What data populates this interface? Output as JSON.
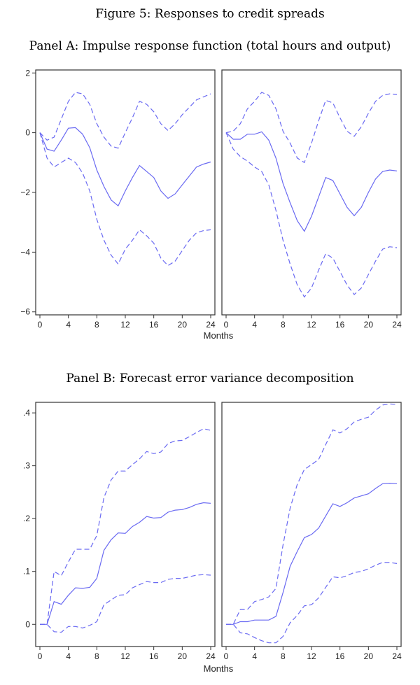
{
  "figure_title": "Figure 5: Responses to credit spreads",
  "colors": {
    "line": "#6a6af2",
    "frame": "#333333"
  },
  "chart_data": [
    {
      "panel": "Panel A: Impulse response function (total hours and output)",
      "type": "line",
      "xlabel": "Months",
      "xlim": [
        0,
        24
      ],
      "ylim": [
        -6.1,
        2.1
      ],
      "xticks": [
        0,
        4,
        8,
        12,
        16,
        20,
        24
      ],
      "yticks": [
        2,
        0,
        -2,
        -4,
        -6
      ],
      "ytick_labels": [
        "2",
        "0",
        "−2",
        "−4",
        "−6"
      ],
      "grid": false,
      "x": [
        0,
        1,
        2,
        3,
        4,
        5,
        6,
        7,
        8,
        9,
        10,
        11,
        12,
        13,
        14,
        15,
        16,
        17,
        18,
        19,
        20,
        21,
        22,
        23,
        24
      ],
      "subplots": [
        {
          "series": [
            {
              "style": "solid",
              "values": [
                0,
                -0.55,
                -0.62,
                -0.25,
                0.15,
                0.17,
                -0.05,
                -0.5,
                -1.25,
                -1.8,
                -2.25,
                -2.45,
                -1.95,
                -1.5,
                -1.1,
                -1.3,
                -1.5,
                -1.95,
                -2.2,
                -2.05,
                -1.75,
                -1.45,
                -1.15,
                -1.05,
                -0.98
              ]
            },
            {
              "style": "dashed",
              "values": [
                0,
                -0.25,
                -0.15,
                0.45,
                1.05,
                1.35,
                1.3,
                0.95,
                0.3,
                -0.15,
                -0.45,
                -0.52,
                0.0,
                0.5,
                1.05,
                0.95,
                0.7,
                0.3,
                0.07,
                0.3,
                0.6,
                0.85,
                1.1,
                1.2,
                1.3
              ]
            },
            {
              "style": "dashed",
              "values": [
                0,
                -0.85,
                -1.15,
                -1.0,
                -0.85,
                -1.0,
                -1.35,
                -1.95,
                -2.9,
                -3.6,
                -4.1,
                -4.4,
                -3.9,
                -3.6,
                -3.25,
                -3.45,
                -3.7,
                -4.2,
                -4.45,
                -4.3,
                -3.95,
                -3.6,
                -3.35,
                -3.28,
                -3.25
              ]
            }
          ]
        },
        {
          "series": [
            {
              "style": "solid",
              "values": [
                0,
                -0.22,
                -0.22,
                -0.05,
                -0.05,
                0.03,
                -0.25,
                -0.85,
                -1.7,
                -2.35,
                -2.95,
                -3.3,
                -2.8,
                -2.15,
                -1.5,
                -1.6,
                -2.05,
                -2.5,
                -2.78,
                -2.5,
                -2.0,
                -1.55,
                -1.3,
                -1.25,
                -1.28
              ]
            },
            {
              "style": "dashed",
              "values": [
                0,
                0.05,
                0.3,
                0.8,
                1.05,
                1.35,
                1.25,
                0.8,
                0.05,
                -0.35,
                -0.85,
                -1.0,
                -0.35,
                0.4,
                1.08,
                1.0,
                0.5,
                0.05,
                -0.12,
                0.2,
                0.65,
                1.05,
                1.25,
                1.3,
                1.28
              ]
            },
            {
              "style": "dashed",
              "values": [
                0,
                -0.55,
                -0.8,
                -0.95,
                -1.15,
                -1.3,
                -1.75,
                -2.6,
                -3.6,
                -4.4,
                -5.1,
                -5.5,
                -5.2,
                -4.6,
                -4.05,
                -4.2,
                -4.65,
                -5.1,
                -5.42,
                -5.2,
                -4.75,
                -4.3,
                -3.9,
                -3.82,
                -3.85
              ]
            }
          ]
        }
      ]
    },
    {
      "panel": "Panel B: Forecast error variance decomposition",
      "type": "line",
      "xlabel": "Months",
      "xlim": [
        0,
        24
      ],
      "ylim": [
        -0.042,
        0.42
      ],
      "xticks": [
        0,
        4,
        8,
        12,
        16,
        20,
        24
      ],
      "yticks": [
        0.4,
        0.3,
        0.2,
        0.1,
        0
      ],
      "ytick_labels": [
        ".4",
        ".3",
        ".2",
        ".1",
        "0"
      ],
      "grid": false,
      "x": [
        0,
        1,
        2,
        3,
        4,
        5,
        6,
        7,
        8,
        9,
        10,
        11,
        12,
        13,
        14,
        15,
        16,
        17,
        18,
        19,
        20,
        21,
        22,
        23,
        24
      ],
      "subplots": [
        {
          "series": [
            {
              "style": "solid",
              "values": [
                0,
                0,
                0.043,
                0.038,
                0.055,
                0.069,
                0.068,
                0.07,
                0.087,
                0.14,
                0.16,
                0.173,
                0.172,
                0.185,
                0.193,
                0.204,
                0.201,
                0.202,
                0.212,
                0.216,
                0.217,
                0.221,
                0.227,
                0.23,
                0.229
              ]
            },
            {
              "style": "dashed",
              "values": [
                0,
                0,
                0.1,
                0.092,
                0.118,
                0.142,
                0.142,
                0.142,
                0.168,
                0.24,
                0.273,
                0.29,
                0.29,
                0.302,
                0.313,
                0.327,
                0.323,
                0.326,
                0.342,
                0.347,
                0.348,
                0.355,
                0.363,
                0.37,
                0.367
              ]
            },
            {
              "style": "dashed",
              "values": [
                0,
                0,
                -0.014,
                -0.015,
                -0.004,
                -0.004,
                -0.007,
                -0.002,
                0.005,
                0.037,
                0.046,
                0.055,
                0.056,
                0.069,
                0.075,
                0.081,
                0.079,
                0.079,
                0.085,
                0.087,
                0.087,
                0.09,
                0.093,
                0.094,
                0.093
              ]
            }
          ]
        },
        {
          "series": [
            {
              "style": "solid",
              "values": [
                0,
                0,
                0.005,
                0.005,
                0.008,
                0.008,
                0.008,
                0.015,
                0.06,
                0.11,
                0.138,
                0.164,
                0.17,
                0.182,
                0.205,
                0.228,
                0.223,
                0.23,
                0.239,
                0.243,
                0.247,
                0.257,
                0.266,
                0.267,
                0.266
              ]
            },
            {
              "style": "dashed",
              "values": [
                0,
                0,
                0.028,
                0.028,
                0.043,
                0.047,
                0.052,
                0.068,
                0.15,
                0.22,
                0.265,
                0.293,
                0.302,
                0.312,
                0.34,
                0.368,
                0.362,
                0.37,
                0.383,
                0.388,
                0.392,
                0.405,
                0.415,
                0.417,
                0.416
              ]
            },
            {
              "style": "dashed",
              "values": [
                0,
                0,
                -0.016,
                -0.018,
                -0.025,
                -0.031,
                -0.035,
                -0.035,
                -0.023,
                0.003,
                0.017,
                0.035,
                0.037,
                0.05,
                0.07,
                0.09,
                0.088,
                0.092,
                0.098,
                0.1,
                0.105,
                0.112,
                0.117,
                0.117,
                0.115
              ]
            }
          ]
        }
      ]
    }
  ]
}
